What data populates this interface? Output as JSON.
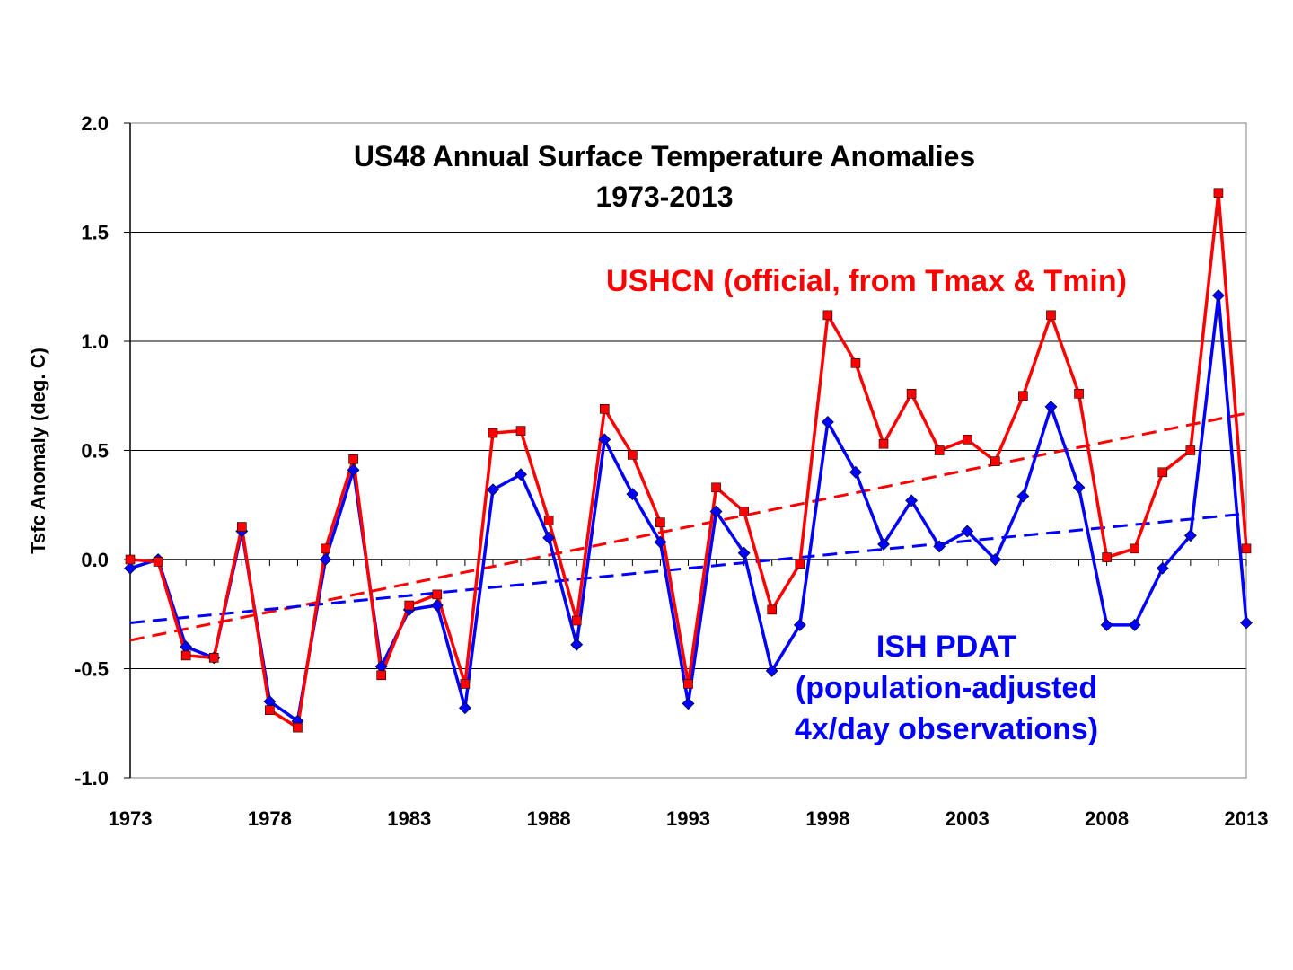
{
  "chart_data": {
    "type": "line",
    "title": "US48 Annual Surface Temperature Anomalies",
    "subtitle": "1973-2013",
    "xlabel": "",
    "ylabel": "Tsfc Anomaly (deg. C)",
    "ylim": [
      -1.0,
      2.0
    ],
    "xlim": [
      1973,
      2013
    ],
    "y_ticks": [
      "2.0",
      "1.5",
      "1.0",
      "0.5",
      "0.0",
      "-0.5",
      "-1.0"
    ],
    "y_tick_values": [
      2.0,
      1.5,
      1.0,
      0.5,
      0.0,
      -0.5,
      -1.0
    ],
    "x_ticks": [
      "1973",
      "1978",
      "1983",
      "1988",
      "1993",
      "1998",
      "2003",
      "2008",
      "2013"
    ],
    "x_tick_values": [
      1973,
      1978,
      1983,
      1988,
      1993,
      1998,
      2003,
      2008,
      2013
    ],
    "grid": "horizontal",
    "x": [
      1973,
      1974,
      1975,
      1976,
      1977,
      1978,
      1979,
      1980,
      1981,
      1982,
      1983,
      1984,
      1985,
      1986,
      1987,
      1988,
      1989,
      1990,
      1991,
      1992,
      1993,
      1994,
      1995,
      1996,
      1997,
      1998,
      1999,
      2000,
      2001,
      2002,
      2003,
      2004,
      2005,
      2006,
      2007,
      2008,
      2009,
      2010,
      2011,
      2012,
      2013
    ],
    "series": [
      {
        "name": "USHCN",
        "color": "#ff0000",
        "marker": "square",
        "values": [
          0.0,
          -0.01,
          -0.44,
          -0.45,
          0.15,
          -0.69,
          -0.77,
          0.05,
          0.46,
          -0.53,
          -0.21,
          -0.16,
          -0.57,
          0.58,
          0.59,
          0.18,
          -0.28,
          0.69,
          0.48,
          0.17,
          -0.57,
          0.33,
          0.22,
          -0.23,
          -0.02,
          1.12,
          0.9,
          0.53,
          0.76,
          0.5,
          0.55,
          0.45,
          0.75,
          1.12,
          0.76,
          0.01,
          0.05,
          0.4,
          0.5,
          1.68,
          0.05
        ],
        "trend": [
          -0.37,
          0.67
        ]
      },
      {
        "name": "ISH PDAT",
        "color": "#0000ff",
        "marker": "diamond",
        "values": [
          -0.04,
          0.0,
          -0.4,
          -0.45,
          0.13,
          -0.65,
          -0.74,
          0.0,
          0.41,
          -0.49,
          -0.23,
          -0.21,
          -0.68,
          0.32,
          0.39,
          0.1,
          -0.39,
          0.55,
          0.3,
          0.08,
          -0.66,
          0.22,
          0.03,
          -0.51,
          -0.3,
          0.63,
          0.4,
          0.07,
          0.27,
          0.06,
          0.13,
          0.0,
          0.29,
          0.7,
          0.33,
          -0.3,
          -0.3,
          -0.04,
          0.11,
          1.21,
          -0.29
        ],
        "trend": [
          -0.29,
          0.21
        ]
      }
    ],
    "annotations": {
      "ushcn_label": "USHCN (official, from Tmax & Tmin)",
      "ish_label_line1": "ISH PDAT",
      "ish_label_line2": "(population-adjusted",
      "ish_label_line3": "4x/day observations)"
    }
  }
}
